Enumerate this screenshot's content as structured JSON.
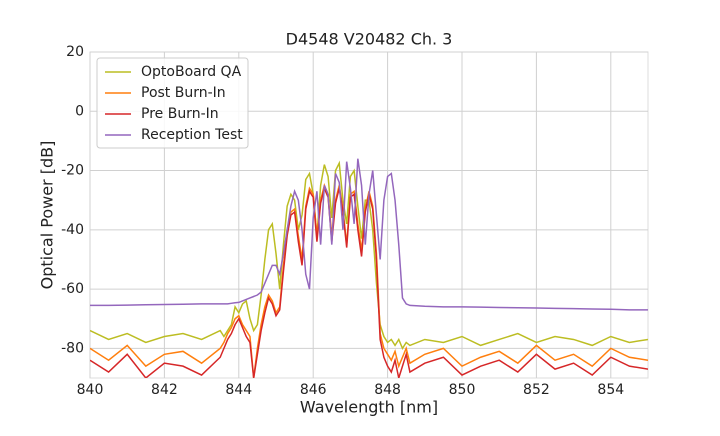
{
  "chart_data": {
    "type": "line",
    "title": "D4548 V20482 Ch. 3",
    "x_label": "Wavelength [nm]",
    "y_label": "Optical Power [dB]",
    "x": [
      840,
      840.5,
      841,
      841.5,
      842,
      842.5,
      843,
      843.5,
      843.6,
      843.7,
      843.8,
      843.9,
      844,
      844.1,
      844.2,
      844.3,
      844.4,
      844.5,
      844.6,
      844.7,
      844.8,
      844.9,
      845,
      845.1,
      845.2,
      845.3,
      845.4,
      845.5,
      845.6,
      845.7,
      845.8,
      845.9,
      846,
      846.1,
      846.2,
      846.3,
      846.4,
      846.5,
      846.6,
      846.7,
      846.8,
      846.9,
      847,
      847.1,
      847.2,
      847.3,
      847.4,
      847.5,
      847.6,
      847.7,
      847.8,
      847.9,
      848,
      848.1,
      848.2,
      848.3,
      848.4,
      848.5,
      848.6,
      849,
      849.5,
      850,
      850.5,
      851,
      851.5,
      852,
      852.5,
      853,
      853.5,
      854,
      854.5,
      855
    ],
    "series": [
      {
        "name": "OptoBoard QA",
        "color": "#bcbd22",
        "values": [
          -74,
          -77,
          -75,
          -78,
          -76,
          -75,
          -77,
          -74,
          -76,
          -74,
          -72,
          -66,
          -68,
          -65,
          -64,
          -70,
          -74,
          -72,
          -62,
          -50,
          -40,
          -38,
          -48,
          -60,
          -45,
          -32,
          -28,
          -30,
          -40,
          -35,
          -23,
          -21,
          -28,
          -42,
          -25,
          -18,
          -22,
          -36,
          -20,
          -17.5,
          -30,
          -38,
          -22,
          -20,
          -32,
          -43,
          -30,
          -30,
          -40,
          -58,
          -72,
          -76,
          -78,
          -77,
          -79,
          -77,
          -80,
          -78,
          -79,
          -77,
          -78,
          -76,
          -79,
          -77,
          -75,
          -78,
          -76,
          -77,
          -79,
          -76,
          -78,
          -77
        ]
      },
      {
        "name": "Post Burn-In",
        "color": "#ff7f0e",
        "values": [
          -80,
          -84,
          -79,
          -86,
          -82,
          -81,
          -85,
          -80,
          -78,
          -75,
          -73,
          -70,
          -69,
          -72,
          -74,
          -76,
          -90,
          -80,
          -72,
          -66,
          -62,
          -64,
          -68,
          -66,
          -52,
          -40,
          -34,
          -33,
          -42,
          -50,
          -32,
          -26,
          -28,
          -42,
          -30,
          -25,
          -28,
          -42,
          -30,
          -25,
          -33,
          -45,
          -28,
          -27,
          -38,
          -47,
          -33,
          -27,
          -32,
          -48,
          -75,
          -80,
          -82,
          -84,
          -81,
          -86,
          -83,
          -80,
          -85,
          -82,
          -80,
          -86,
          -83,
          -81,
          -85,
          -79,
          -84,
          -82,
          -86,
          -80,
          -83,
          -84
        ]
      },
      {
        "name": "Pre Burn-In",
        "color": "#d62728",
        "values": [
          -84,
          -88,
          -82,
          -90,
          -85,
          -86,
          -89,
          -83,
          -80,
          -77,
          -75,
          -72,
          -70,
          -73,
          -76,
          -78,
          -90,
          -82,
          -74,
          -68,
          -63,
          -65,
          -69,
          -67,
          -54,
          -42,
          -35,
          -34,
          -44,
          -52,
          -33,
          -27,
          -29,
          -44,
          -31,
          -26,
          -29,
          -44,
          -31,
          -26,
          -34,
          -46,
          -29,
          -28,
          -40,
          -49,
          -34,
          -28,
          -33,
          -50,
          -77,
          -83,
          -86,
          -88,
          -84,
          -90,
          -86,
          -82,
          -88,
          -85,
          -83,
          -89,
          -86,
          -84,
          -88,
          -82,
          -87,
          -85,
          -89,
          -83,
          -86,
          -87
        ]
      },
      {
        "name": "Reception Test",
        "color": "#9467bd",
        "values": [
          -65.5,
          -65.5,
          -65.4,
          -65.3,
          -65.2,
          -65.1,
          -65,
          -65,
          -65,
          -65,
          -64.8,
          -64.6,
          -64.5,
          -64,
          -63.5,
          -63,
          -62.5,
          -62,
          -61,
          -58,
          -55,
          -52,
          -52,
          -55,
          -48,
          -40,
          -32,
          -27,
          -30,
          -40,
          -55,
          -60,
          -36,
          -27,
          -45,
          -25,
          -28,
          -45,
          -21,
          -24,
          -40,
          -17,
          -26,
          -38,
          -16,
          -25,
          -45,
          -28,
          -20,
          -35,
          -50,
          -30,
          -22,
          -21,
          -30,
          -45,
          -63,
          -65,
          -65.5,
          -65.8,
          -66,
          -66,
          -66.1,
          -66.2,
          -66.3,
          -66.4,
          -66.5,
          -66.6,
          -66.7,
          -66.8,
          -67,
          -67
        ]
      }
    ],
    "xlim": [
      840,
      855
    ],
    "xticks": [
      840,
      842,
      844,
      846,
      848,
      850,
      852,
      854
    ],
    "ylim": [
      -90,
      20
    ],
    "yticks": [
      -80,
      -60,
      -40,
      -20,
      0,
      20
    ],
    "grid": true,
    "legend": "upper left"
  }
}
